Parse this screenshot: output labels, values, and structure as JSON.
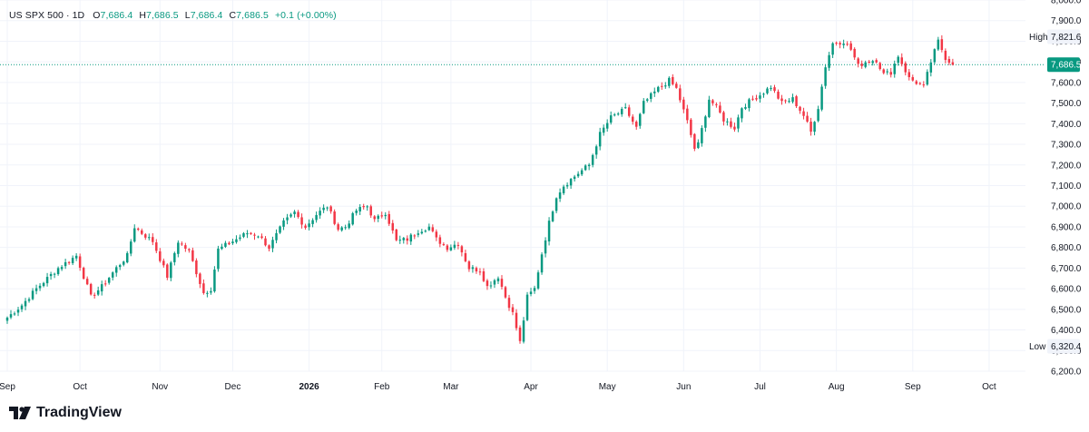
{
  "legend": {
    "symbol": "US SPX 500 · 1D",
    "open_label": "O",
    "open": "7,686.4",
    "high_label": "H",
    "high": "7,686.5",
    "low_label": "L",
    "low": "7,686.4",
    "close_label": "C",
    "close": "7,686.5",
    "change": "+0.1 (+0.00%)"
  },
  "tags": {
    "high_label": "High",
    "high_value": "7,821.6",
    "low_label": "Low",
    "low_value": "6,320.4",
    "last_value": "7,686.5"
  },
  "brand": {
    "name": "TradingView"
  },
  "colors": {
    "up": "#089981",
    "down": "#f23645",
    "last_line": "#089981",
    "grid": "#f0f3fa"
  },
  "chart_data": {
    "type": "candlestick",
    "title": "US SPX 500 · 1D",
    "ylim": [
      6200,
      8000
    ],
    "yticks": [
      6200,
      6300,
      6400,
      6500,
      6600,
      6700,
      6800,
      6900,
      7000,
      7100,
      7200,
      7300,
      7400,
      7500,
      7600,
      7700,
      7800,
      7900,
      8000
    ],
    "ytick_labels": [
      "6,200.0",
      "6,300.0",
      "6,400.0",
      "6,500.0",
      "6,600.0",
      "6,700.0",
      "6,800.0",
      "6,900.0",
      "7,000.0",
      "7,100.0",
      "7,200.0",
      "7,300.0",
      "7,400.0",
      "7,500.0",
      "7,600.0",
      "7,700.0",
      "7,800.0",
      "7,900.0",
      "8,000.0"
    ],
    "x_ticks": [
      {
        "label": "Sep",
        "index": 0
      },
      {
        "label": "Oct",
        "index": 20
      },
      {
        "label": "Nov",
        "index": 42
      },
      {
        "label": "Dec",
        "index": 62
      },
      {
        "label": "2026",
        "index": 83,
        "bold": true
      },
      {
        "label": "Feb",
        "index": 103
      },
      {
        "label": "Mar",
        "index": 122
      },
      {
        "label": "Apr",
        "index": 144
      },
      {
        "label": "May",
        "index": 165
      },
      {
        "label": "Jun",
        "index": 186
      },
      {
        "label": "Jul",
        "index": 207
      },
      {
        "label": "Aug",
        "index": 228
      },
      {
        "label": "Sep",
        "index": 249
      },
      {
        "label": "Oct",
        "index": 270
      }
    ],
    "anchors": [
      [
        0,
        6460
      ],
      [
        4,
        6520
      ],
      [
        8,
        6600
      ],
      [
        14,
        6700
      ],
      [
        19,
        6760
      ],
      [
        23,
        6560
      ],
      [
        26,
        6610
      ],
      [
        30,
        6700
      ],
      [
        33,
        6760
      ],
      [
        35,
        6900
      ],
      [
        37,
        6870
      ],
      [
        40,
        6830
      ],
      [
        44,
        6660
      ],
      [
        47,
        6830
      ],
      [
        50,
        6780
      ],
      [
        54,
        6580
      ],
      [
        56,
        6600
      ],
      [
        58,
        6790
      ],
      [
        62,
        6830
      ],
      [
        66,
        6870
      ],
      [
        69,
        6860
      ],
      [
        72,
        6800
      ],
      [
        76,
        6920
      ],
      [
        79,
        6970
      ],
      [
        82,
        6900
      ],
      [
        85,
        6960
      ],
      [
        88,
        7000
      ],
      [
        91,
        6890
      ],
      [
        93,
        6900
      ],
      [
        96,
        6980
      ],
      [
        99,
        7000
      ],
      [
        101,
        6930
      ],
      [
        104,
        6970
      ],
      [
        107,
        6830
      ],
      [
        110,
        6840
      ],
      [
        113,
        6880
      ],
      [
        116,
        6900
      ],
      [
        118,
        6840
      ],
      [
        121,
        6800
      ],
      [
        124,
        6820
      ],
      [
        127,
        6700
      ],
      [
        130,
        6690
      ],
      [
        132,
        6610
      ],
      [
        135,
        6660
      ],
      [
        137,
        6560
      ],
      [
        139,
        6480
      ],
      [
        141,
        6340
      ],
      [
        143,
        6560
      ],
      [
        145,
        6600
      ],
      [
        147,
        6770
      ],
      [
        149,
        6920
      ],
      [
        151,
        7050
      ],
      [
        153,
        7100
      ],
      [
        157,
        7160
      ],
      [
        160,
        7200
      ],
      [
        163,
        7350
      ],
      [
        166,
        7430
      ],
      [
        170,
        7470
      ],
      [
        173,
        7380
      ],
      [
        175,
        7500
      ],
      [
        179,
        7570
      ],
      [
        182,
        7610
      ],
      [
        184,
        7570
      ],
      [
        187,
        7410
      ],
      [
        189,
        7280
      ],
      [
        190,
        7300
      ],
      [
        193,
        7520
      ],
      [
        195,
        7480
      ],
      [
        197,
        7420
      ],
      [
        200,
        7380
      ],
      [
        202,
        7480
      ],
      [
        205,
        7520
      ],
      [
        207,
        7540
      ],
      [
        210,
        7580
      ],
      [
        213,
        7500
      ],
      [
        216,
        7520
      ],
      [
        219,
        7440
      ],
      [
        221,
        7360
      ],
      [
        223,
        7480
      ],
      [
        225,
        7680
      ],
      [
        227,
        7790
      ],
      [
        230,
        7800
      ],
      [
        232,
        7760
      ],
      [
        234,
        7680
      ],
      [
        236,
        7700
      ],
      [
        239,
        7710
      ],
      [
        241,
        7640
      ],
      [
        243,
        7650
      ],
      [
        245,
        7730
      ],
      [
        248,
        7620
      ],
      [
        250,
        7600
      ],
      [
        252,
        7580
      ],
      [
        254,
        7700
      ],
      [
        256,
        7800
      ],
      [
        258,
        7720
      ],
      [
        260,
        7686.5
      ]
    ]
  }
}
